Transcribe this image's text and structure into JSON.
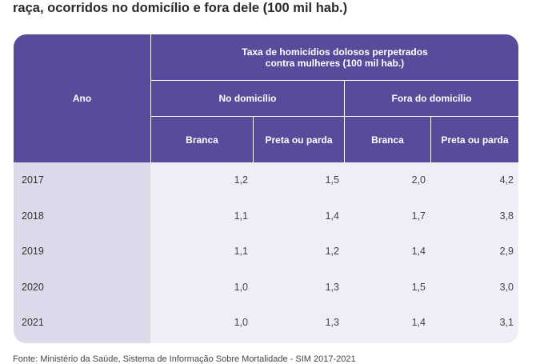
{
  "title": "raça, ocorridos no domicílio e fora dele (100 mil hab.)",
  "header": {
    "ano": "Ano",
    "group": "Taxa de homicídios dolosos perpetrados contra mulheres (100 mil hab.)",
    "no_domicilio": "No domicílio",
    "fora_domicilio": "Fora do domicílio",
    "cols": [
      "Branca",
      "Preta ou parda",
      "Branca",
      "Preta ou parda"
    ]
  },
  "rows": [
    {
      "ano": "2017",
      "values": [
        "1,2",
        "1,5",
        "2,0",
        "4,2"
      ]
    },
    {
      "ano": "2018",
      "values": [
        "1,1",
        "1,4",
        "1,7",
        "3,8"
      ]
    },
    {
      "ano": "2019",
      "values": [
        "1,1",
        "1,2",
        "1,4",
        "2,9"
      ]
    },
    {
      "ano": "2020",
      "values": [
        "1,0",
        "1,3",
        "1,5",
        "3,0"
      ]
    },
    {
      "ano": "2021",
      "values": [
        "1,0",
        "1,3",
        "1,4",
        "3,1"
      ]
    }
  ],
  "footer": "Fonte: Ministério da Saúde, Sistema de Informação Sobre Mortalidade - SIM 2017-2021"
}
